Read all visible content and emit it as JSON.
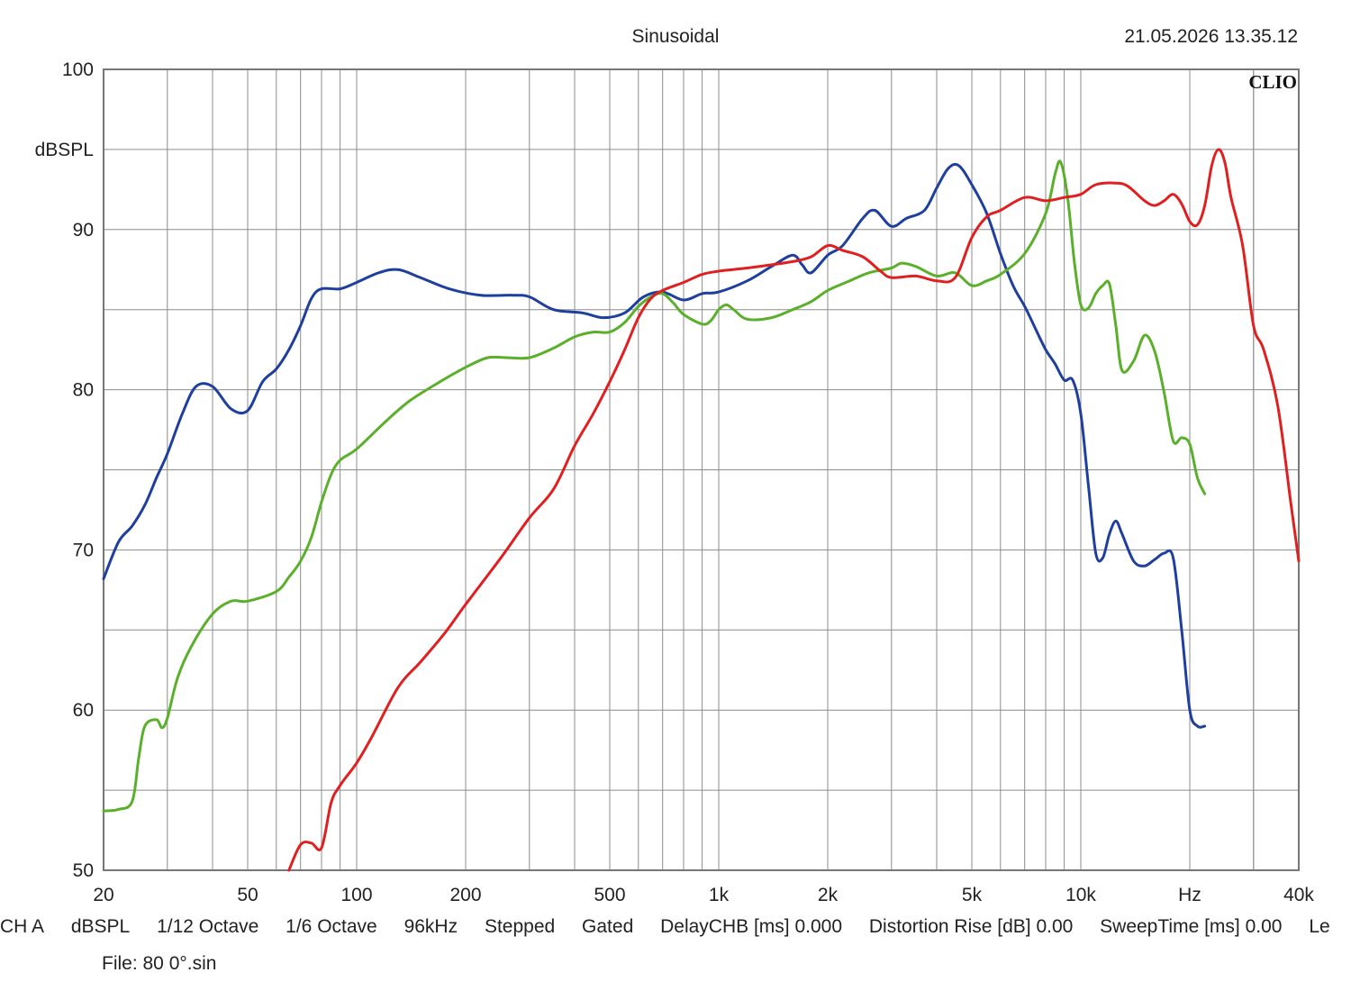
{
  "header": {
    "title": "Sinusoidal",
    "timestamp": "21.05.2026 13.35.12",
    "brand": "CLIO"
  },
  "chart_data": {
    "type": "line",
    "title": "Sinusoidal",
    "ylabel": "dBSPL",
    "xlabel": "Hz",
    "x_scale": "log",
    "xlim": [
      20,
      40000
    ],
    "ylim": [
      50,
      100
    ],
    "grid": true,
    "y_ticks": [
      "100",
      "90",
      "80",
      "70",
      "60",
      "50"
    ],
    "x_ticks": [
      {
        "value": 20,
        "label": "20"
      },
      {
        "value": 50,
        "label": "50"
      },
      {
        "value": 100,
        "label": "100"
      },
      {
        "value": 200,
        "label": "200"
      },
      {
        "value": 500,
        "label": "500"
      },
      {
        "value": 1000,
        "label": "1k"
      },
      {
        "value": 2000,
        "label": "2k"
      },
      {
        "value": 5000,
        "label": "5k"
      },
      {
        "value": 10000,
        "label": "10k"
      },
      {
        "value": 20000,
        "label": "Hz"
      },
      {
        "value": 40000,
        "label": "40k"
      }
    ],
    "series": [
      {
        "color": "#1f3f9e",
        "points": [
          [
            20,
            68.2
          ],
          [
            22,
            70.5
          ],
          [
            24,
            71.5
          ],
          [
            26,
            72.8
          ],
          [
            28,
            74.5
          ],
          [
            30,
            76
          ],
          [
            33,
            78.5
          ],
          [
            36,
            80.2
          ],
          [
            40,
            80.2
          ],
          [
            45,
            78.8
          ],
          [
            50,
            78.7
          ],
          [
            55,
            80.5
          ],
          [
            60,
            81.3
          ],
          [
            65,
            82.5
          ],
          [
            70,
            84
          ],
          [
            75,
            85.7
          ],
          [
            80,
            86.3
          ],
          [
            90,
            86.3
          ],
          [
            100,
            86.7
          ],
          [
            115,
            87.3
          ],
          [
            130,
            87.5
          ],
          [
            150,
            87
          ],
          [
            180,
            86.3
          ],
          [
            220,
            85.9
          ],
          [
            270,
            85.9
          ],
          [
            300,
            85.8
          ],
          [
            350,
            85
          ],
          [
            420,
            84.8
          ],
          [
            480,
            84.5
          ],
          [
            550,
            84.8
          ],
          [
            620,
            85.8
          ],
          [
            700,
            86.1
          ],
          [
            800,
            85.6
          ],
          [
            900,
            86
          ],
          [
            1000,
            86.1
          ],
          [
            1200,
            86.8
          ],
          [
            1400,
            87.7
          ],
          [
            1600,
            88.4
          ],
          [
            1700,
            87.8
          ],
          [
            1800,
            87.3
          ],
          [
            2000,
            88.4
          ],
          [
            2200,
            89
          ],
          [
            2500,
            90.7
          ],
          [
            2700,
            91.2
          ],
          [
            3000,
            90.2
          ],
          [
            3300,
            90.7
          ],
          [
            3700,
            91.2
          ],
          [
            4000,
            92.6
          ],
          [
            4300,
            93.8
          ],
          [
            4600,
            94
          ],
          [
            5000,
            92.8
          ],
          [
            5500,
            91
          ],
          [
            6000,
            88.5
          ],
          [
            6500,
            86.5
          ],
          [
            7000,
            85.2
          ],
          [
            7500,
            83.8
          ],
          [
            8000,
            82.5
          ],
          [
            8500,
            81.6
          ],
          [
            9000,
            80.6
          ],
          [
            9500,
            80.6
          ],
          [
            10000,
            78.5
          ],
          [
            10500,
            74
          ],
          [
            11000,
            69.8
          ],
          [
            11500,
            69.5
          ],
          [
            12000,
            71
          ],
          [
            12500,
            71.8
          ],
          [
            13000,
            71
          ],
          [
            14000,
            69.3
          ],
          [
            15000,
            69
          ],
          [
            16000,
            69.4
          ],
          [
            17000,
            69.8
          ],
          [
            18000,
            69.5
          ],
          [
            19000,
            65
          ],
          [
            20000,
            60
          ],
          [
            21000,
            59
          ],
          [
            22000,
            59
          ]
        ]
      },
      {
        "color": "#5ab02a",
        "points": [
          [
            20,
            53.7
          ],
          [
            22,
            53.8
          ],
          [
            24,
            54.3
          ],
          [
            25,
            57
          ],
          [
            26,
            59
          ],
          [
            28,
            59.4
          ],
          [
            29,
            58.9
          ],
          [
            30,
            59.5
          ],
          [
            32,
            62
          ],
          [
            35,
            64
          ],
          [
            40,
            66
          ],
          [
            45,
            66.8
          ],
          [
            50,
            66.8
          ],
          [
            60,
            67.4
          ],
          [
            65,
            68.3
          ],
          [
            70,
            69.3
          ],
          [
            75,
            70.8
          ],
          [
            80,
            73
          ],
          [
            85,
            74.7
          ],
          [
            90,
            75.6
          ],
          [
            100,
            76.3
          ],
          [
            120,
            78
          ],
          [
            140,
            79.3
          ],
          [
            170,
            80.5
          ],
          [
            200,
            81.4
          ],
          [
            230,
            82
          ],
          [
            260,
            82
          ],
          [
            300,
            82
          ],
          [
            350,
            82.6
          ],
          [
            400,
            83.3
          ],
          [
            450,
            83.6
          ],
          [
            500,
            83.6
          ],
          [
            550,
            84.2
          ],
          [
            600,
            85.2
          ],
          [
            650,
            85.8
          ],
          [
            700,
            86
          ],
          [
            750,
            85.4
          ],
          [
            800,
            84.7
          ],
          [
            900,
            84.1
          ],
          [
            950,
            84.3
          ],
          [
            1000,
            85
          ],
          [
            1050,
            85.3
          ],
          [
            1100,
            85
          ],
          [
            1200,
            84.4
          ],
          [
            1400,
            84.5
          ],
          [
            1600,
            85
          ],
          [
            1800,
            85.5
          ],
          [
            2000,
            86.2
          ],
          [
            2300,
            86.8
          ],
          [
            2600,
            87.3
          ],
          [
            3000,
            87.6
          ],
          [
            3200,
            87.9
          ],
          [
            3500,
            87.7
          ],
          [
            4000,
            87.1
          ],
          [
            4500,
            87.3
          ],
          [
            5000,
            86.5
          ],
          [
            5500,
            86.8
          ],
          [
            6000,
            87.2
          ],
          [
            7000,
            88.5
          ],
          [
            8000,
            91
          ],
          [
            8500,
            93.5
          ],
          [
            8800,
            94.2
          ],
          [
            9200,
            92
          ],
          [
            9600,
            88
          ],
          [
            10000,
            85.3
          ],
          [
            10500,
            85.1
          ],
          [
            11000,
            86
          ],
          [
            11500,
            86.5
          ],
          [
            12000,
            86.6
          ],
          [
            12500,
            84
          ],
          [
            13000,
            81.2
          ],
          [
            14000,
            81.8
          ],
          [
            15000,
            83.4
          ],
          [
            16000,
            82.4
          ],
          [
            17000,
            79.8
          ],
          [
            18000,
            76.8
          ],
          [
            19000,
            77
          ],
          [
            20000,
            76.6
          ],
          [
            21000,
            74.5
          ],
          [
            22000,
            73.5
          ]
        ]
      },
      {
        "color": "#e02020",
        "points": [
          [
            65,
            50
          ],
          [
            70,
            51.6
          ],
          [
            75,
            51.7
          ],
          [
            80,
            51.4
          ],
          [
            85,
            54.2
          ],
          [
            90,
            55.3
          ],
          [
            100,
            56.7
          ],
          [
            110,
            58.3
          ],
          [
            130,
            61.4
          ],
          [
            150,
            63
          ],
          [
            175,
            64.8
          ],
          [
            200,
            66.6
          ],
          [
            250,
            69.5
          ],
          [
            300,
            72
          ],
          [
            350,
            73.8
          ],
          [
            400,
            76.5
          ],
          [
            450,
            78.5
          ],
          [
            500,
            80.5
          ],
          [
            550,
            82.5
          ],
          [
            600,
            84.5
          ],
          [
            650,
            85.7
          ],
          [
            700,
            86.2
          ],
          [
            800,
            86.7
          ],
          [
            900,
            87.2
          ],
          [
            1000,
            87.4
          ],
          [
            1200,
            87.6
          ],
          [
            1400,
            87.8
          ],
          [
            1600,
            88
          ],
          [
            1800,
            88.3
          ],
          [
            2000,
            89
          ],
          [
            2200,
            88.7
          ],
          [
            2500,
            88.3
          ],
          [
            2800,
            87.4
          ],
          [
            3000,
            87
          ],
          [
            3500,
            87.1
          ],
          [
            4000,
            86.8
          ],
          [
            4500,
            87
          ],
          [
            5000,
            89.5
          ],
          [
            5500,
            90.8
          ],
          [
            6000,
            91.2
          ],
          [
            7000,
            92
          ],
          [
            8000,
            91.8
          ],
          [
            9000,
            92
          ],
          [
            10000,
            92.2
          ],
          [
            11000,
            92.8
          ],
          [
            12500,
            92.9
          ],
          [
            13500,
            92.7
          ],
          [
            15000,
            91.8
          ],
          [
            16000,
            91.5
          ],
          [
            17000,
            91.8
          ],
          [
            18000,
            92.2
          ],
          [
            19000,
            91.6
          ],
          [
            20000,
            90.5
          ],
          [
            21000,
            90.3
          ],
          [
            22000,
            91.5
          ],
          [
            23000,
            94
          ],
          [
            24000,
            95
          ],
          [
            25000,
            94.2
          ],
          [
            26000,
            92
          ],
          [
            28000,
            89
          ],
          [
            30000,
            84
          ],
          [
            32000,
            82.5
          ],
          [
            35000,
            79
          ],
          [
            38000,
            73
          ],
          [
            40000,
            69.3
          ]
        ]
      }
    ]
  },
  "footer": {
    "items": [
      "CH A",
      "dBSPL",
      "1/12 Octave",
      "1/6 Octave",
      "96kHz",
      "Stepped",
      "Gated",
      "DelayCHB [ms] 0.000",
      "Distortion Rise [dB] 0.00",
      "SweepTime [ms] 0.00",
      "Le"
    ],
    "file": "File: 80 0°.sin"
  }
}
